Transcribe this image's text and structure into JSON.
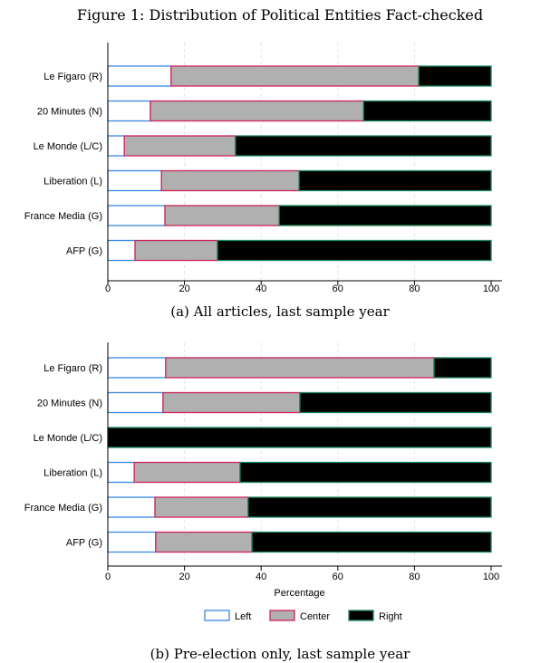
{
  "title": "Figure 1: Distribution of Political Entities Fact-checked",
  "colors": {
    "left_fill": "#ffffff",
    "left_border": "#3a87e0",
    "center_fill": "#b0b0b0",
    "center_border": "#d0245a",
    "right_fill": "#000000",
    "right_border": "#1a8a5a"
  },
  "legend": [
    "Left",
    "Center",
    "Right"
  ],
  "chart_data": [
    {
      "type": "bar",
      "orientation": "horizontal-stacked",
      "caption": "(a) All articles, last sample year",
      "categories": [
        "Le Figaro (R)",
        "20 Minutes (N)",
        "Le Monde (L/C)",
        "Liberation (L)",
        "France Media (G)",
        "AFP (G)"
      ],
      "series": [
        {
          "name": "Left",
          "values": [
            16.5,
            11.1,
            4.3,
            14.0,
            14.9,
            7.1
          ]
        },
        {
          "name": "Center",
          "values": [
            64.6,
            55.6,
            29.0,
            35.9,
            29.8,
            21.5
          ]
        },
        {
          "name": "Right",
          "values": [
            18.9,
            33.3,
            66.7,
            50.1,
            55.3,
            71.4
          ]
        }
      ],
      "xlim": [
        0,
        100
      ],
      "xticks": [
        "0",
        "20",
        "40",
        "60",
        "80",
        "100"
      ],
      "xlabel": ""
    },
    {
      "type": "bar",
      "orientation": "horizontal-stacked",
      "caption": "(b) Pre-election only, last sample year",
      "categories": [
        "Le Figaro (R)",
        "20 Minutes (N)",
        "Le Monde (L/C)",
        "Liberation (L)",
        "France Media (G)",
        "AFP (G)"
      ],
      "series": [
        {
          "name": "Left",
          "values": [
            15.1,
            14.4,
            0,
            6.9,
            12.3,
            12.5
          ]
        },
        {
          "name": "Center",
          "values": [
            70.0,
            35.7,
            0,
            27.6,
            24.3,
            25.1
          ]
        },
        {
          "name": "Right",
          "values": [
            14.9,
            49.9,
            100,
            65.5,
            63.4,
            62.4
          ]
        }
      ],
      "xlim": [
        0,
        100
      ],
      "xticks": [
        "0",
        "20",
        "40",
        "60",
        "80",
        "100"
      ],
      "xlabel": "Percentage"
    }
  ]
}
